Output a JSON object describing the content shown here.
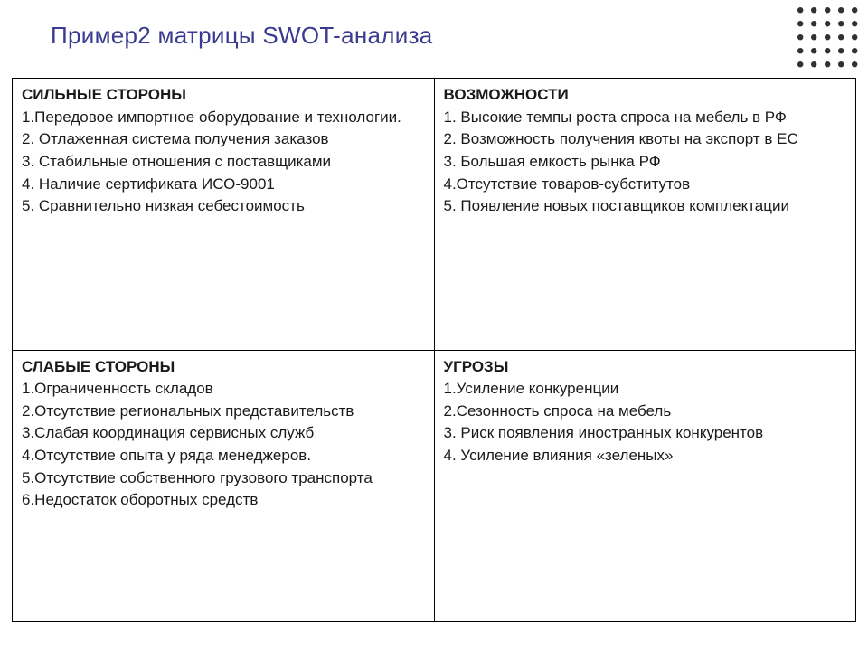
{
  "title": "Пример2 матрицы  SWOT-анализа",
  "colors": {
    "title": "#3a3a90",
    "text": "#1a1a1a",
    "border": "#000000",
    "background": "#ffffff",
    "dot": "#313131"
  },
  "dotgrid": {
    "rows": 5,
    "cols": 5,
    "spacing": 15,
    "radius": 3.2,
    "color": "#313131"
  },
  "table": {
    "type": "table",
    "rows": 2,
    "cols": 2,
    "border_color": "#000000",
    "cell_font_size": 17
  },
  "swot": {
    "strengths": {
      "heading": "СИЛЬНЫЕ СТОРОНЫ",
      "items": [
        "1.Передовое импортное оборудование и технологии.",
        "2. Отлаженная система получения заказов",
        "3. Стабильные отношения с поставщиками",
        "4. Наличие сертификата ИСО-9001",
        "5. Сравнительно низкая себестоимость"
      ]
    },
    "opportunities": {
      "heading": "ВОЗМОЖНОСТИ",
      "items": [
        "1. Высокие темпы роста спроса на мебель в РФ",
        "2. Возможность получения квоты на экспорт в ЕС",
        "3. Большая емкость рынка РФ",
        "4.Отсутствие товаров-субститутов",
        "5. Появление новых поставщиков комплектации"
      ]
    },
    "weaknesses": {
      "heading": "СЛАБЫЕ СТОРОНЫ",
      "items": [
        "1.Ограниченность складов",
        "2.Отсутствие региональных представительств",
        "3.Слабая координация  сервисных служб",
        "4.Отсутствие опыта у ряда менеджеров.",
        "5.Отсутствие собственного грузового транспорта",
        "6.Недостаток оборотных средств"
      ]
    },
    "threats": {
      "heading": "УГРОЗЫ",
      "items": [
        "1.Усиление конкуренции",
        "2.Сезонность спроса на мебель",
        "3. Риск появления иностранных конкурентов",
        "4. Усиление влияния «зеленых»"
      ]
    }
  }
}
